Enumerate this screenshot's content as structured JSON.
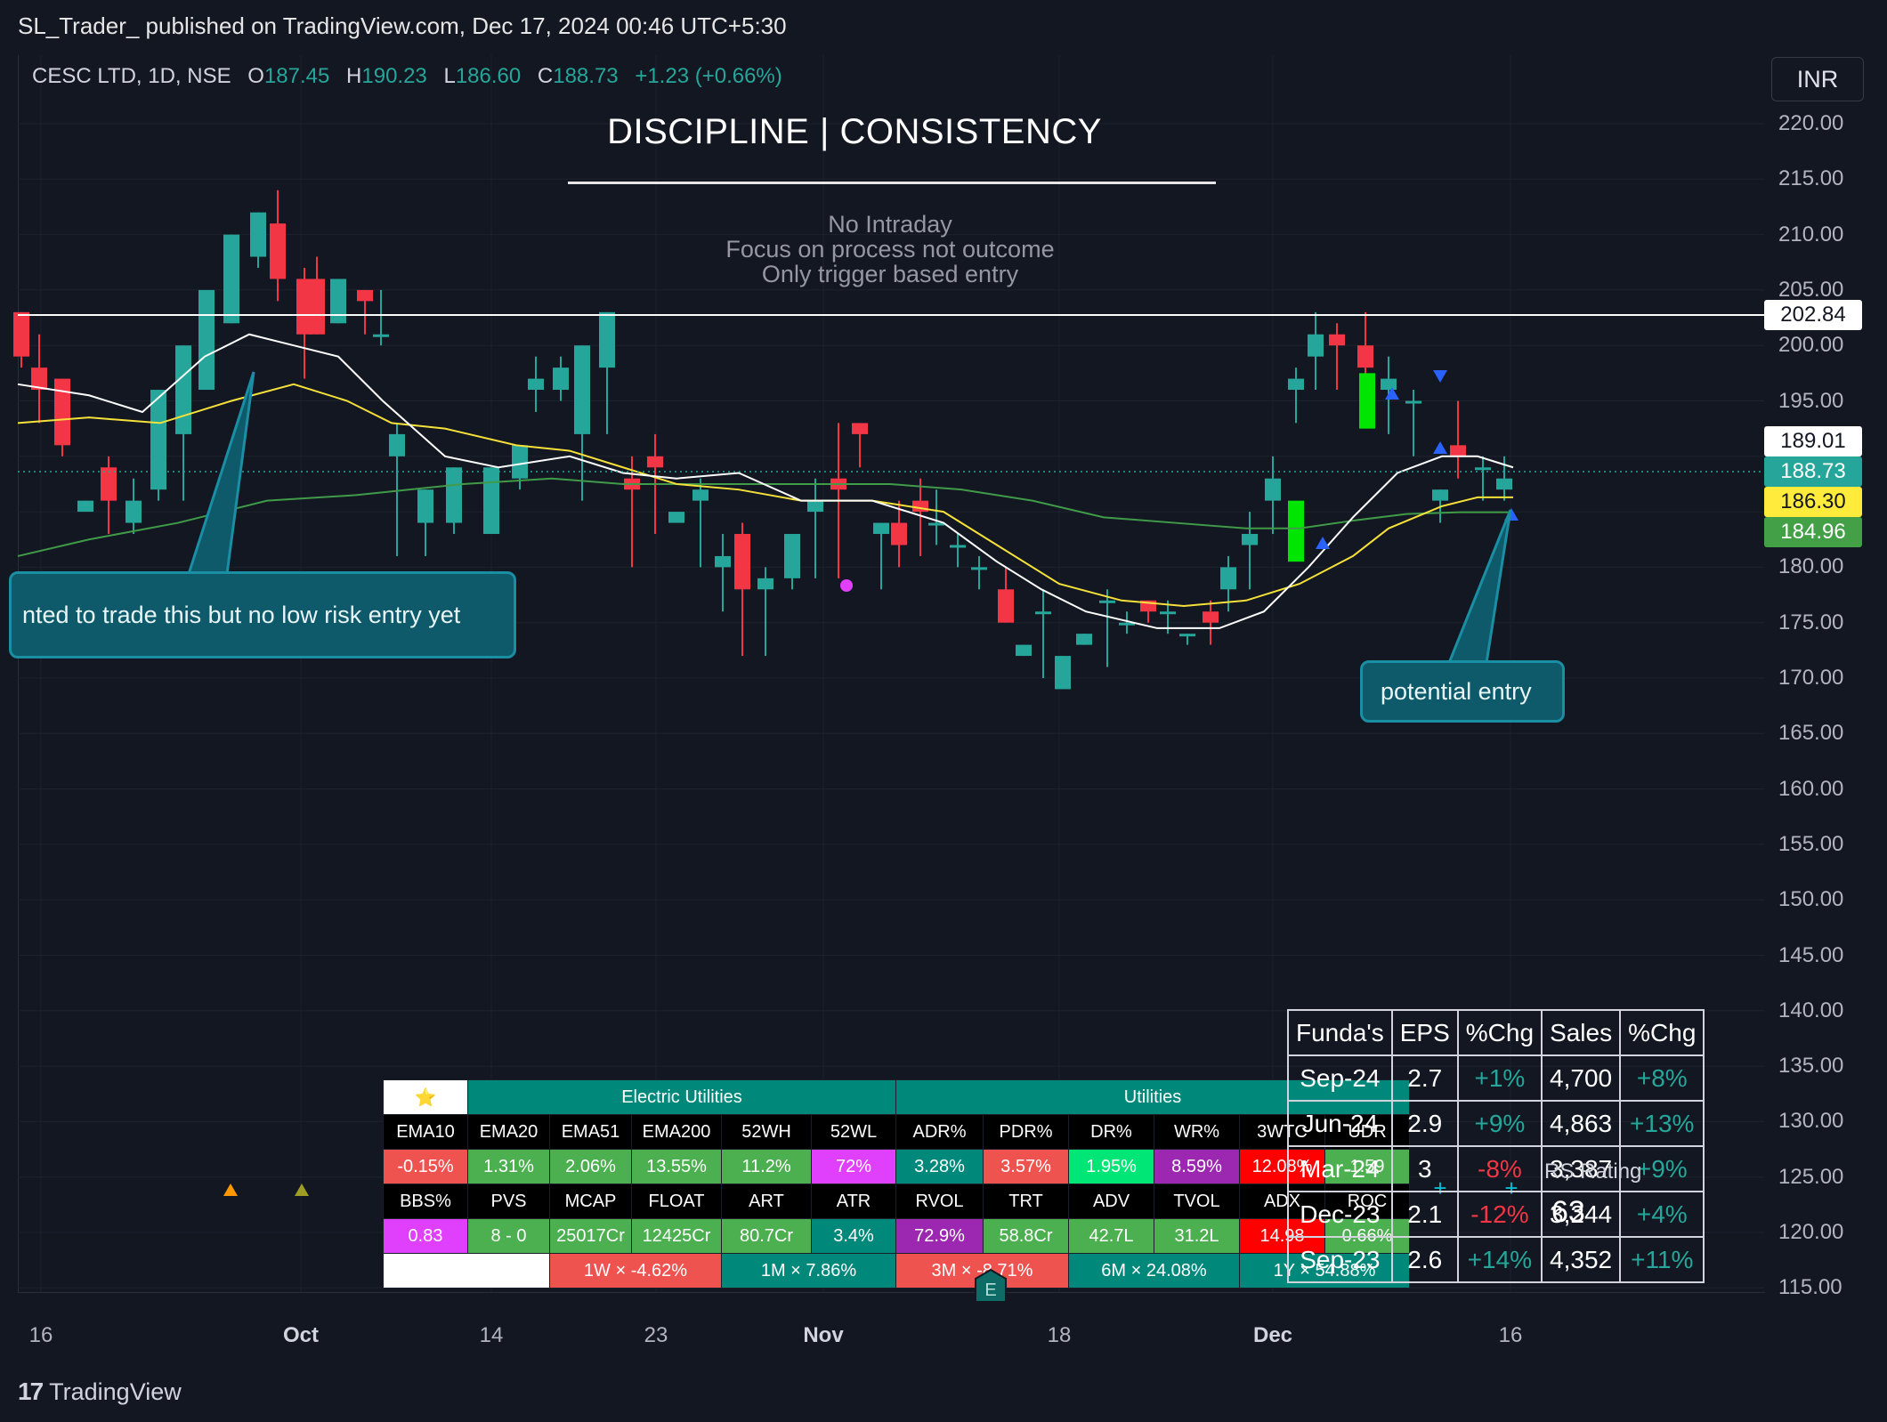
{
  "publish_bar": "SL_Trader_ published on TradingView.com, Dec 17, 2024 00:46 UTC+5:30",
  "symbol": {
    "name": "CESC LTD, 1D, NSE",
    "o_label": "O",
    "o": "187.45",
    "h_label": "H",
    "h": "190.23",
    "l_label": "L",
    "l": "186.60",
    "c_label": "C",
    "c": "188.73",
    "change": "+1.23 (+0.66%)"
  },
  "currency": "INR",
  "headline": "DISCIPLINE  | CONSISTENCY",
  "rules": [
    "No Intraday",
    "Focus on process not outcome",
    "Only trigger based entry"
  ],
  "price_axis": [
    "220.00",
    "215.00",
    "210.00",
    "205.00",
    "200.00",
    "195.00",
    "190.00",
    "185.00",
    "180.00",
    "175.00",
    "170.00",
    "165.00",
    "160.00",
    "155.00",
    "150.00",
    "145.00",
    "140.00",
    "135.00",
    "130.00",
    "125.00",
    "120.00",
    "115.00"
  ],
  "price_tags": {
    "resistance": "202.84",
    "high_line": "189.01",
    "last": "188.73",
    "ema_yellow": "186.30",
    "ema_green": "184.96"
  },
  "time_axis": [
    {
      "label": "16",
      "bold": false
    },
    {
      "label": "Oct",
      "bold": true
    },
    {
      "label": "14",
      "bold": false
    },
    {
      "label": "23",
      "bold": false
    },
    {
      "label": "Nov",
      "bold": true
    },
    {
      "label": "18",
      "bold": false
    },
    {
      "label": "Dec",
      "bold": true
    },
    {
      "label": "16",
      "bold": false
    }
  ],
  "callouts": {
    "left": "nted to trade this but no low risk entry yet",
    "right": "potential entry"
  },
  "stats": {
    "star": "⭐",
    "sector": "Electric Utilities",
    "industry": "Utilities",
    "row1": [
      "EMA10",
      "EMA20",
      "EMA51",
      "EMA200",
      "52WH",
      "52WL",
      "ADR%",
      "PDR%",
      "DR%",
      "WR%",
      "3WTC",
      "UDR"
    ],
    "row2": [
      "-0.15%",
      "1.31%",
      "2.06%",
      "13.55%",
      "11.2%",
      "72%",
      "3.28%",
      "3.57%",
      "1.95%",
      "8.59%",
      "12.08%",
      "1.59"
    ],
    "row3": [
      "BBS%",
      "PVS",
      "MCAP",
      "FLOAT",
      "ART",
      "ATR",
      "RVOL",
      "TRT",
      "ADV",
      "TVOL",
      "ADX",
      "ROC"
    ],
    "row4": [
      "0.83",
      "8 - 0",
      "25017Cr",
      "12425Cr",
      "80.7Cr",
      "3.4%",
      "72.9%",
      "58.8Cr",
      "42.7L",
      "31.2L",
      "14.98",
      "0.66%"
    ],
    "perf": [
      "1W  ×  -4.62%",
      "1M  ×  7.86%",
      "3M  ×  -8.71%",
      "6M  ×  24.08%",
      "1Y  ×  54.88%"
    ],
    "colors": {
      "header_bg": "#00897b",
      "green": "#4caf50",
      "red": "#ef5350",
      "magenta": "#e040fb",
      "purple": "#9c27b0",
      "teal": "#00897b",
      "bright_green": "#00e676",
      "bright_red": "#ff0000"
    }
  },
  "funda": {
    "headers": [
      "Funda's",
      "EPS",
      "%Chg",
      "Sales",
      "%Chg"
    ],
    "rows": [
      {
        "q": "Sep-24",
        "eps": "2.7",
        "eps_chg": "+1%",
        "sales": "4,700",
        "sales_chg": "+8%"
      },
      {
        "q": "Jun-24",
        "eps": "2.9",
        "eps_chg": "+9%",
        "sales": "4,863",
        "sales_chg": "+13%"
      },
      {
        "q": "Mar-24",
        "eps": "3",
        "eps_chg": "-8%",
        "sales": "3,387",
        "sales_chg": "+9%"
      },
      {
        "q": "Dec-23",
        "eps": "2.1",
        "eps_chg": "-12%",
        "sales": "3,244",
        "sales_chg": "+4%"
      },
      {
        "q": "Sep-23",
        "eps": "2.6",
        "eps_chg": "+14%",
        "sales": "4,352",
        "sales_chg": "+11%"
      }
    ]
  },
  "rs_rating_label": "RS Rating",
  "rs_rating_value": "63",
  "earnings_badge": "E",
  "logo_text": "TradingView",
  "logo_mark": "17",
  "colors": {
    "up": "#26a69a",
    "down": "#f23645",
    "ema_white": "#ffffff",
    "ema_yellow": "#f5e13a",
    "ema_green": "#3f9b48",
    "callout_bg": "#0e5a6b"
  }
}
